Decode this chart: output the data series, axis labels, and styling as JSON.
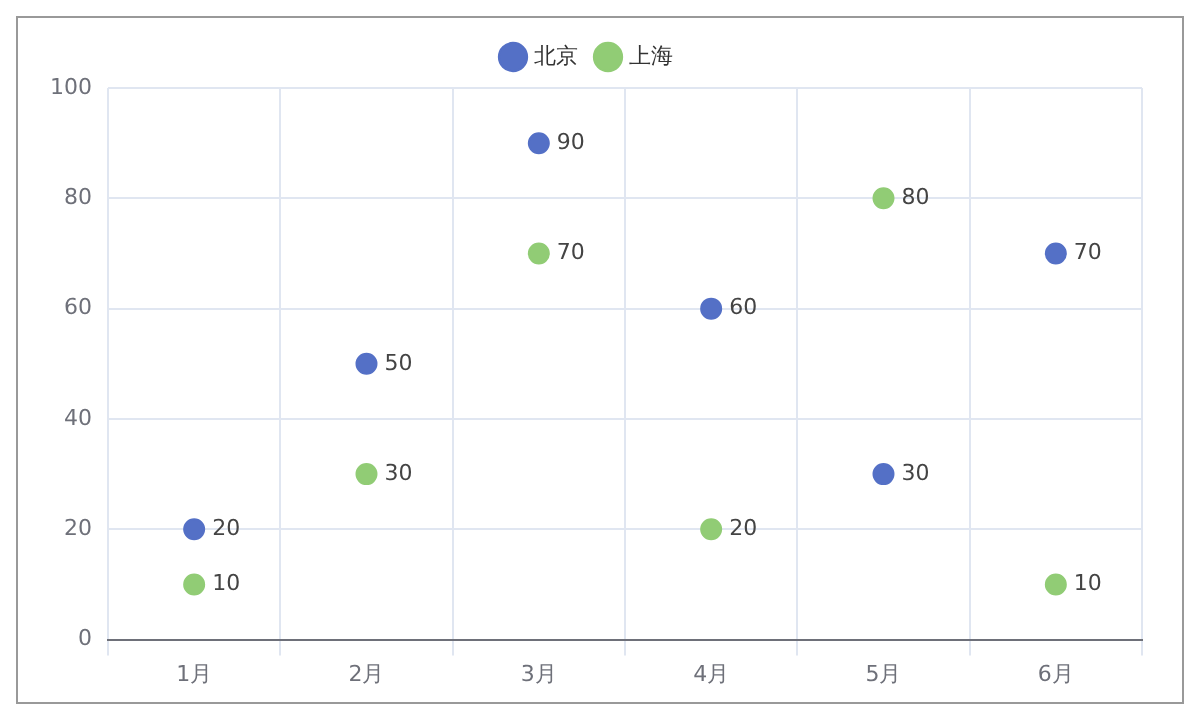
{
  "chart_data": {
    "type": "scatter",
    "categories": [
      "1月",
      "2月",
      "3月",
      "4月",
      "5月",
      "6月"
    ],
    "series": [
      {
        "name": "北京",
        "color": "#5470c6",
        "values": [
          20,
          50,
          90,
          60,
          30,
          70
        ]
      },
      {
        "name": "上海",
        "color": "#91cc75",
        "values": [
          10,
          30,
          70,
          20,
          80,
          10
        ]
      }
    ],
    "ylim": [
      0,
      100
    ],
    "yticks": [
      0,
      20,
      40,
      60,
      80,
      100
    ],
    "grid": true,
    "legend": "top",
    "marker": "circle",
    "data_labels": true
  }
}
